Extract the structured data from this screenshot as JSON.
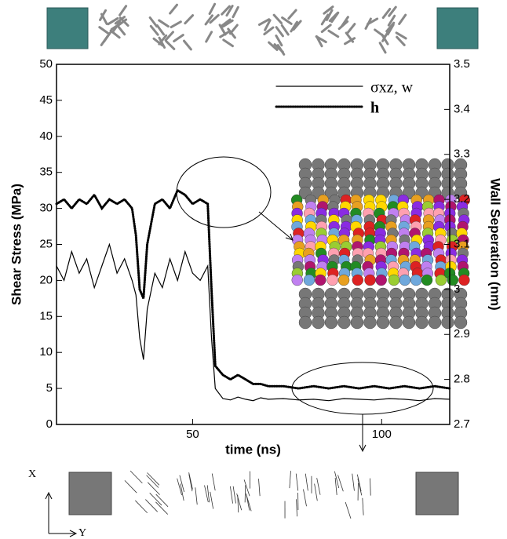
{
  "chart_data": {
    "type": "line",
    "x_label": "time (ns)",
    "y_label": "Shear Stress  (MPa)",
    "y2_label": "Wall Seperation (nm)",
    "annotations": [
      "X",
      "Y"
    ],
    "xlim": [
      14,
      118
    ],
    "xticks": [
      50,
      100
    ],
    "ylim": [
      0,
      50
    ],
    "yticks": [
      0,
      5,
      10,
      15,
      20,
      25,
      30,
      35,
      40,
      45,
      50
    ],
    "y2lim": [
      2.7,
      3.5
    ],
    "y2ticks": [
      2.7,
      2.8,
      2.9,
      3,
      3.1,
      3.2,
      3.3,
      3.4,
      3.5
    ],
    "legend": "upper right",
    "x": [
      14,
      16,
      18,
      20,
      22,
      24,
      26,
      28,
      30,
      32,
      34,
      35,
      36,
      37,
      38,
      40,
      42,
      44,
      46,
      48,
      50,
      52,
      54,
      55,
      56,
      58,
      60,
      62,
      64,
      66,
      68,
      70,
      74,
      78,
      82,
      86,
      90,
      94,
      98,
      102,
      106,
      110,
      114,
      118
    ],
    "series": [
      {
        "name": "σxz, w",
        "color": "#000000",
        "style": "solid",
        "values": [
          22,
          20,
          24,
          21,
          23,
          19,
          22,
          25,
          21,
          23,
          20,
          18,
          12,
          9,
          16,
          21,
          19,
          23,
          20,
          24,
          21,
          20,
          22,
          12,
          5,
          3.6,
          3.4,
          3.8,
          3.5,
          3.3,
          3.7,
          3.5,
          3.6,
          3.4,
          3.5,
          3.3,
          3.6,
          3.5,
          3.4,
          3.6,
          3.5,
          3.3,
          3.6,
          3.5
        ]
      },
      {
        "name": "h",
        "color": "#000000",
        "style": "dotted",
        "axis": "y2",
        "values": [
          3.19,
          3.2,
          3.18,
          3.2,
          3.19,
          3.21,
          3.18,
          3.2,
          3.19,
          3.2,
          3.18,
          3.12,
          3.0,
          2.98,
          3.1,
          3.19,
          3.2,
          3.18,
          3.22,
          3.21,
          3.19,
          3.2,
          3.19,
          3.0,
          2.83,
          2.81,
          2.8,
          2.81,
          2.8,
          2.79,
          2.79,
          2.785,
          2.785,
          2.78,
          2.785,
          2.78,
          2.785,
          2.78,
          2.785,
          2.78,
          2.785,
          2.78,
          2.785,
          2.78
        ]
      }
    ]
  }
}
